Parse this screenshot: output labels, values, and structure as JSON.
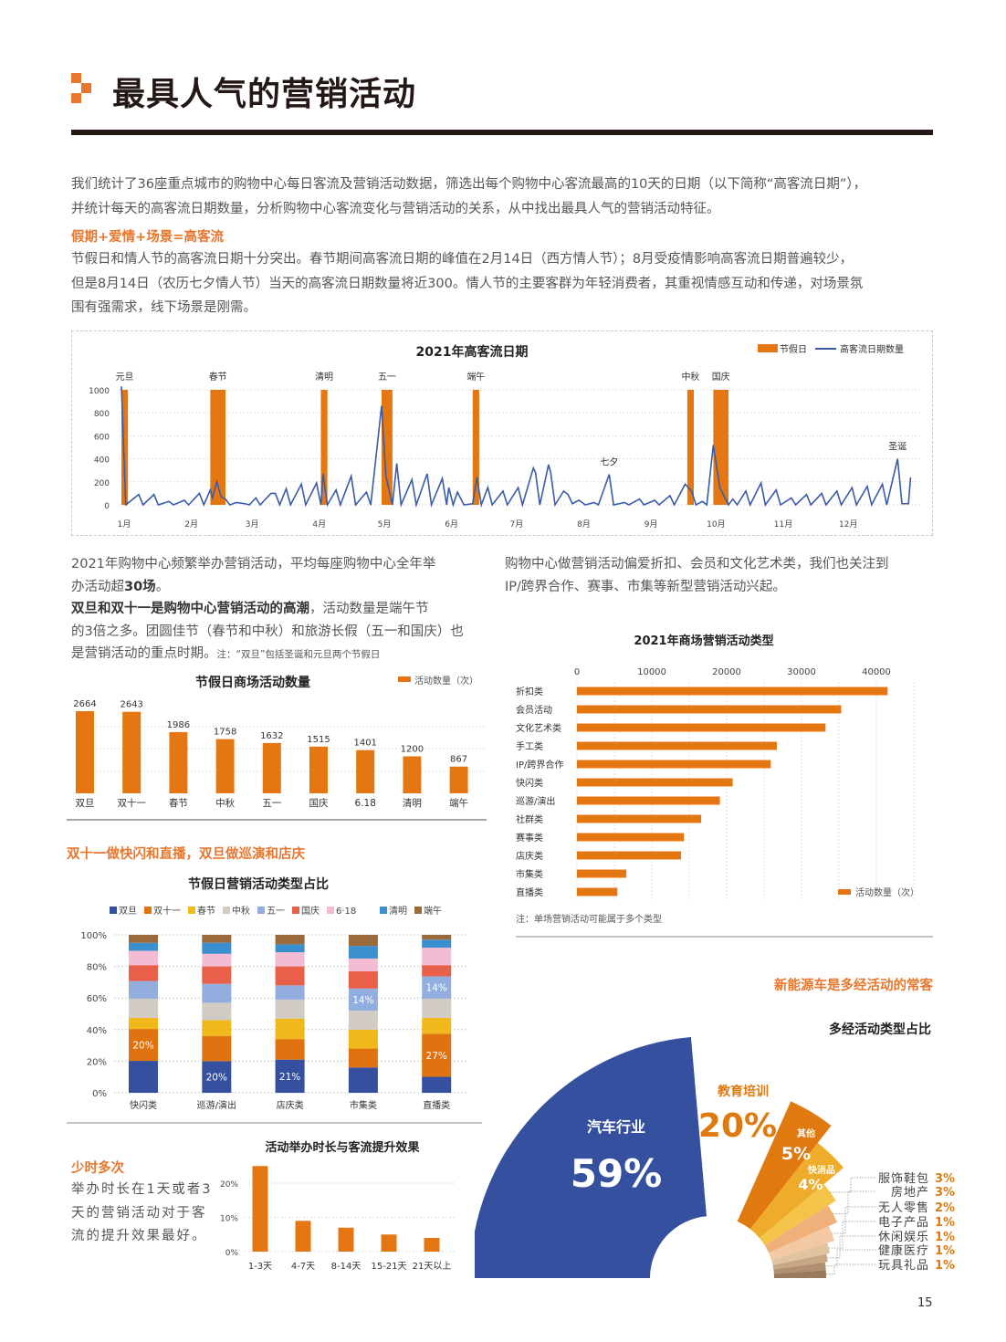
{
  "header": {
    "title": "最具人气的营销活动",
    "accent": "#e8772e"
  },
  "intro": {
    "lines": [
      "我们统计了36座重点城市的购物中心每日客流及营销活动数据，筛选出每个购物中心客流最高的10天的日期（以下简称“高客流日期”），",
      "并统计每天的高客流日期数量，分析购物中心客流变化与营销活动的关系，从中找出最具人气的营销活动特征。"
    ],
    "subhead": "假期+爱情+场景=高客流",
    "body": [
      "节假日和情人节的高客流日期十分突出。春节期间高客流日期的峰值在2月14日（西方情人节）；8月受疫情影响高客流日期普遍较少，",
      "但是8月14日（农历七夕情人节）当天的高客流日期数量将近300。情人节的主要客群为年轻消费者，其重视情感互动和传递，对场景氛",
      "围有强需求，线下场景是刚需。"
    ]
  },
  "left_text": {
    "l1": "2021年购物中心频繁举办营销活动，平均每座购物中心全年举",
    "l2a": "办活动超",
    "l2b": "30场",
    "l2c": "。",
    "l3a": "双旦和双十一是购物中心营销活动的高潮",
    "l3b": "，活动数量是端午节",
    "l4": "的3倍之多。团圆佳节（春节和中秋）和旅游长假（五一和国庆）也",
    "l5": "是营销活动的重点时期。",
    "note": "注：“双旦”包括圣诞和元旦两个节假日"
  },
  "right_text": {
    "lines": [
      "购物中心做营销活动偏爱折扣、会员和文化艺术类，我们也关注到",
      "IP/跨界合作、赛事、市集等新型营销活动兴起。"
    ]
  },
  "section2_subhead": "双十一做快闪和直播，双旦做巡演和店庆",
  "section3": {
    "subhead": "少时多次",
    "lines": [
      "举办时长在1天或者3",
      "天的营销活动对于客",
      "流的提升效果最好。"
    ]
  },
  "section4": {
    "subhead": "新能源车是多经活动的常客"
  },
  "page_number": "15",
  "chart_data": [
    {
      "type": "line",
      "title": "2021年高客流日期",
      "legend": [
        "节假日",
        "高客流日期数量"
      ],
      "legend_position": "top-right",
      "colors": {
        "holiday": "#e57712",
        "line": "#3a5ba8"
      },
      "ylim": [
        0,
        1000
      ],
      "yticks": [
        0,
        200,
        400,
        600,
        800,
        1000
      ],
      "xticks": [
        "1月",
        "2月",
        "3月",
        "4月",
        "5月",
        "6月",
        "7月",
        "8月",
        "9月",
        "10月",
        "11月",
        "12月"
      ],
      "holidays": [
        {
          "name": "元旦",
          "start": "01-01",
          "end": "01-03"
        },
        {
          "name": "春节",
          "start": "02-11",
          "end": "02-17"
        },
        {
          "name": "清明",
          "start": "04-03",
          "end": "04-05"
        },
        {
          "name": "五一",
          "start": "05-01",
          "end": "05-05"
        },
        {
          "name": "端午",
          "start": "06-12",
          "end": "06-14"
        },
        {
          "name": "中秋",
          "start": "09-19",
          "end": "09-21"
        },
        {
          "name": "国庆",
          "start": "10-01",
          "end": "10-07"
        }
      ],
      "annotations": [
        {
          "text": "七夕",
          "date": "08-14",
          "value": 265
        },
        {
          "text": "圣诞",
          "date": "12-25",
          "value": 400
        }
      ],
      "points": [
        [
          "01-01",
          1030
        ],
        [
          "01-03",
          0
        ],
        [
          "01-09",
          90
        ],
        [
          "01-11",
          0
        ],
        [
          "01-16",
          90
        ],
        [
          "01-18",
          0
        ],
        [
          "01-23",
          30
        ],
        [
          "01-25",
          0
        ],
        [
          "01-30",
          40
        ],
        [
          "02-01",
          0
        ],
        [
          "02-06",
          100
        ],
        [
          "02-08",
          0
        ],
        [
          "02-11",
          130
        ],
        [
          "02-12",
          60
        ],
        [
          "02-14",
          200
        ],
        [
          "02-16",
          70
        ],
        [
          "02-18",
          50
        ],
        [
          "02-20",
          0
        ],
        [
          "02-23",
          20
        ],
        [
          "02-27",
          10
        ],
        [
          "03-01",
          0
        ],
        [
          "03-04",
          60
        ],
        [
          "03-06",
          0
        ],
        [
          "03-11",
          100
        ],
        [
          "03-13",
          100
        ],
        [
          "03-15",
          0
        ],
        [
          "03-18",
          140
        ],
        [
          "03-20",
          0
        ],
        [
          "03-25",
          180
        ],
        [
          "03-27",
          0
        ],
        [
          "04-01",
          190
        ],
        [
          "04-03",
          0
        ],
        [
          "04-04",
          270
        ],
        [
          "04-06",
          0
        ],
        [
          "04-10",
          130
        ],
        [
          "04-12",
          0
        ],
        [
          "04-17",
          250
        ],
        [
          "04-19",
          0
        ],
        [
          "04-24",
          110
        ],
        [
          "04-26",
          0
        ],
        [
          "05-01",
          860
        ],
        [
          "05-03",
          250
        ],
        [
          "05-06",
          0
        ],
        [
          "05-08",
          360
        ],
        [
          "05-10",
          0
        ],
        [
          "05-15",
          220
        ],
        [
          "05-17",
          0
        ],
        [
          "05-22",
          270
        ],
        [
          "05-24",
          0
        ],
        [
          "05-29",
          230
        ],
        [
          "05-31",
          0
        ],
        [
          "06-01",
          150
        ],
        [
          "06-03",
          0
        ],
        [
          "06-05",
          110
        ],
        [
          "06-08",
          0
        ],
        [
          "06-12",
          10
        ],
        [
          "06-14",
          240
        ],
        [
          "06-16",
          0
        ],
        [
          "06-19",
          150
        ],
        [
          "06-21",
          0
        ],
        [
          "06-26",
          120
        ],
        [
          "06-28",
          0
        ],
        [
          "07-03",
          150
        ],
        [
          "07-05",
          0
        ],
        [
          "07-10",
          320
        ],
        [
          "07-11",
          280
        ],
        [
          "07-13",
          0
        ],
        [
          "07-17",
          350
        ],
        [
          "07-18",
          280
        ],
        [
          "07-20",
          0
        ],
        [
          "07-24",
          120
        ],
        [
          "07-26",
          90
        ],
        [
          "07-28",
          10
        ],
        [
          "07-31",
          40
        ],
        [
          "08-03",
          0
        ],
        [
          "08-07",
          20
        ],
        [
          "08-09",
          0
        ],
        [
          "08-14",
          265
        ],
        [
          "08-16",
          0
        ],
        [
          "08-21",
          20
        ],
        [
          "08-23",
          0
        ],
        [
          "08-28",
          50
        ],
        [
          "08-30",
          0
        ],
        [
          "09-04",
          40
        ],
        [
          "09-06",
          0
        ],
        [
          "09-11",
          80
        ],
        [
          "09-13",
          0
        ],
        [
          "09-18",
          180
        ],
        [
          "09-21",
          120
        ],
        [
          "09-23",
          0
        ],
        [
          "09-26",
          30
        ],
        [
          "09-28",
          0
        ],
        [
          "10-01",
          520
        ],
        [
          "10-04",
          150
        ],
        [
          "10-08",
          0
        ],
        [
          "10-10",
          50
        ],
        [
          "10-12",
          0
        ],
        [
          "10-16",
          120
        ],
        [
          "10-18",
          0
        ],
        [
          "10-23",
          190
        ],
        [
          "10-25",
          0
        ],
        [
          "10-30",
          130
        ],
        [
          "11-01",
          0
        ],
        [
          "11-06",
          60
        ],
        [
          "11-08",
          0
        ],
        [
          "11-13",
          90
        ],
        [
          "11-15",
          0
        ],
        [
          "11-20",
          100
        ],
        [
          "11-22",
          0
        ],
        [
          "11-27",
          120
        ],
        [
          "11-29",
          0
        ],
        [
          "12-04",
          150
        ],
        [
          "12-06",
          0
        ],
        [
          "12-11",
          160
        ],
        [
          "12-13",
          0
        ],
        [
          "12-18",
          180
        ],
        [
          "12-20",
          0
        ],
        [
          "12-25",
          400
        ],
        [
          "12-27",
          10
        ],
        [
          "12-30",
          10
        ],
        [
          "12-31",
          240
        ]
      ]
    },
    {
      "type": "bar",
      "title": "节假日商场活动数量",
      "legend": [
        "活动数量（次）"
      ],
      "legend_position": "top-right",
      "color": "#e57712",
      "categories": [
        "双旦",
        "双十一",
        "春节",
        "中秋",
        "五一",
        "国庆",
        "6.18",
        "清明",
        "端午"
      ],
      "values": [
        2664,
        2643,
        1986,
        1758,
        1632,
        1515,
        1401,
        1200,
        867
      ]
    },
    {
      "type": "bar",
      "orientation": "horizontal",
      "title": "2021年商场营销活动类型",
      "legend": [
        "活动数量（次）"
      ],
      "legend_position": "bottom-right",
      "color": "#e57712",
      "xlim": [
        0,
        45000
      ],
      "xticks": [
        0,
        10000,
        20000,
        30000,
        40000
      ],
      "categories": [
        "折扣类",
        "会员活动",
        "文化艺术类",
        "手工类",
        "IP/跨界合作",
        "快闪类",
        "巡游/演出",
        "社群类",
        "赛事类",
        "店庆类",
        "市集类",
        "直播类"
      ],
      "values": [
        41500,
        35300,
        33200,
        26700,
        25900,
        20800,
        19100,
        16600,
        14300,
        13900,
        6600,
        5400
      ],
      "note": "注：单场营销活动可能属于多个类型"
    },
    {
      "type": "bar",
      "stacked": "percent",
      "title": "节假日营销活动类型占比",
      "legend_position": "top",
      "yticks": [
        "0%",
        "20%",
        "40%",
        "60%",
        "80%",
        "100%"
      ],
      "categories": [
        "快闪类",
        "巡游/演出",
        "店庆类",
        "市集类",
        "直播类"
      ],
      "series": [
        {
          "name": "双旦",
          "color": "#34509e",
          "values": [
            20,
            20,
            21,
            16,
            10
          ]
        },
        {
          "name": "双十一",
          "color": "#e07210",
          "values": [
            20,
            16,
            13,
            12,
            27
          ]
        },
        {
          "name": "春节",
          "color": "#f1b81c",
          "values": [
            7,
            10,
            13,
            12,
            10
          ]
        },
        {
          "name": "中秋",
          "color": "#d2cbc3",
          "values": [
            12,
            11,
            12,
            12,
            12
          ]
        },
        {
          "name": "五一",
          "color": "#91aede",
          "values": [
            11,
            12,
            9,
            14,
            14
          ]
        },
        {
          "name": "国庆",
          "color": "#e8604a",
          "values": [
            10,
            11,
            12,
            11,
            7
          ]
        },
        {
          "name": "6·18",
          "color": "#f4bcd2",
          "values": [
            9,
            8,
            9,
            8,
            11
          ]
        },
        {
          "name": "清明",
          "color": "#3a8fcf",
          "values": [
            5,
            7,
            5,
            8,
            5
          ]
        },
        {
          "name": "端午",
          "color": "#9b6a3a",
          "values": [
            5,
            5,
            6,
            7,
            3
          ]
        }
      ],
      "data_labels": [
        {
          "category": "快闪类",
          "series": "双十一",
          "text": "20%"
        },
        {
          "category": "巡游/演出",
          "series": "双旦",
          "text": "20%"
        },
        {
          "category": "店庆类",
          "series": "双旦",
          "text": "21%"
        },
        {
          "category": "市集类",
          "series": "五一",
          "text": "14%"
        },
        {
          "category": "直播类",
          "series": "双十一",
          "text": "27%"
        },
        {
          "category": "直播类",
          "series": "五一",
          "text": "14%"
        }
      ]
    },
    {
      "type": "bar",
      "title": "活动举办时长与客流提升效果",
      "color": "#e57712",
      "yticks": [
        "0%",
        "10%",
        "20%"
      ],
      "categories": [
        "1-3天",
        "4-7天",
        "8-14天",
        "15-21天",
        "21天以上"
      ],
      "values": [
        25,
        9,
        7,
        5,
        4
      ]
    },
    {
      "type": "pie",
      "variant": "rose",
      "title": "多经活动类型占比",
      "slices": [
        {
          "label": "汽车行业",
          "value": 59,
          "text": "59%",
          "color": "#34509e"
        },
        {
          "label": "教育培训",
          "value": 20,
          "text": "20%",
          "color": "#ffffff"
        },
        {
          "label": "其他",
          "value": 5,
          "text": "5%",
          "color": "#e07a10"
        },
        {
          "label": "快消品",
          "value": 4,
          "text": "4%",
          "color": "#eeac2a"
        },
        {
          "label": "服饰鞋包",
          "value": 3,
          "text": "3%",
          "color": "#f4c44a"
        },
        {
          "label": "房地产",
          "value": 3,
          "text": "3%",
          "color": "#f0b07a"
        },
        {
          "label": "无人零售",
          "value": 2,
          "text": "2%",
          "color": "#f2c9a2"
        },
        {
          "label": "电子产品",
          "value": 1,
          "text": "1%",
          "color": "#e2c3a0"
        },
        {
          "label": "休闲娱乐",
          "value": 1,
          "text": "1%",
          "color": "#c8a882"
        },
        {
          "label": "健康医疗",
          "value": 1,
          "text": "1%",
          "color": "#b09070"
        },
        {
          "label": "玩具礼品",
          "value": 1,
          "text": "1%",
          "color": "#9a7a5e"
        }
      ]
    }
  ]
}
